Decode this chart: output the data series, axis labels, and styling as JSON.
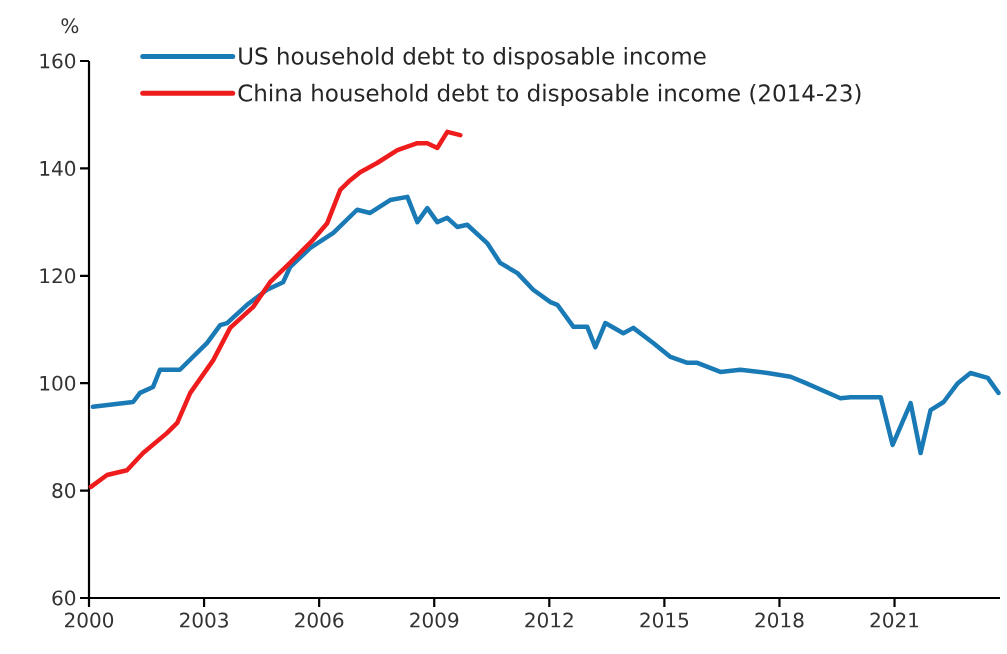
{
  "chart_data": {
    "type": "line",
    "ylabel": "%",
    "xlim": [
      2000,
      2023.75
    ],
    "ylim": [
      60,
      160
    ],
    "xticks": [
      2000,
      2003,
      2006,
      2009,
      2012,
      2015,
      2018,
      2021
    ],
    "yticks": [
      60,
      80,
      100,
      120,
      140,
      160
    ],
    "legend": "top left",
    "series": [
      {
        "name": "US household debt to disposable income",
        "color": "#1a7ab5",
        "x": [
          2000.1,
          2001.15,
          2001.33,
          2001.67,
          2001.85,
          2002.37,
          2003.08,
          2003.42,
          2003.6,
          2004.12,
          2004.64,
          2005.06,
          2005.24,
          2005.77,
          2006.37,
          2006.99,
          2007.33,
          2007.85,
          2008.3,
          2008.56,
          2008.82,
          2009.08,
          2009.34,
          2009.6,
          2009.86,
          2010.38,
          2010.72,
          2011.17,
          2011.58,
          2012.03,
          2012.21,
          2012.63,
          2012.99,
          2013.2,
          2013.46,
          2013.93,
          2014.19,
          2014.71,
          2015.16,
          2015.6,
          2015.86,
          2016.46,
          2016.98,
          2017.69,
          2018.29,
          2018.63,
          2019.59,
          2019.85,
          2020.64,
          2020.95,
          2021.42,
          2021.68,
          2021.94,
          2022.28,
          2022.65,
          2022.98,
          2023.43,
          2023.71
        ],
        "values": [
          95.6,
          96.5,
          98.2,
          99.3,
          102.5,
          102.5,
          107.5,
          110.8,
          111.2,
          114.6,
          117.4,
          118.8,
          121.6,
          125.2,
          128,
          132.3,
          131.7,
          134.1,
          134.7,
          130,
          132.6,
          130,
          130.8,
          129.1,
          129.5,
          126.1,
          122.4,
          120.5,
          117.4,
          115.1,
          114.6,
          110.5,
          110.5,
          106.7,
          111.2,
          109.3,
          110.3,
          107.5,
          104.9,
          103.8,
          103.8,
          102.1,
          102.5,
          101.9,
          101.2,
          100.2,
          97.2,
          97.4,
          97.4,
          88.5,
          96.3,
          87,
          95,
          96.5,
          100,
          101.9,
          101,
          98.2
        ]
      },
      {
        "name": "China household debt to disposable income (2014-23)",
        "color": "#ee1c1c",
        "x": [
          2000.05,
          2000.47,
          2000.99,
          2001.41,
          2002.03,
          2002.3,
          2002.64,
          2003.24,
          2003.68,
          2004.28,
          2004.72,
          2005.24,
          2005.84,
          2006.21,
          2006.55,
          2006.81,
          2007.07,
          2007.51,
          2008.04,
          2008.56,
          2008.82,
          2009.08,
          2009.34,
          2009.68
        ],
        "values": [
          80.7,
          82.9,
          83.8,
          87,
          90.7,
          92.6,
          98.2,
          104.3,
          110.3,
          114.2,
          118.8,
          122.4,
          126.7,
          129.8,
          136,
          137.8,
          139.3,
          141,
          143.4,
          144.7,
          144.7,
          143.8,
          146.8,
          146.2
        ]
      }
    ]
  }
}
